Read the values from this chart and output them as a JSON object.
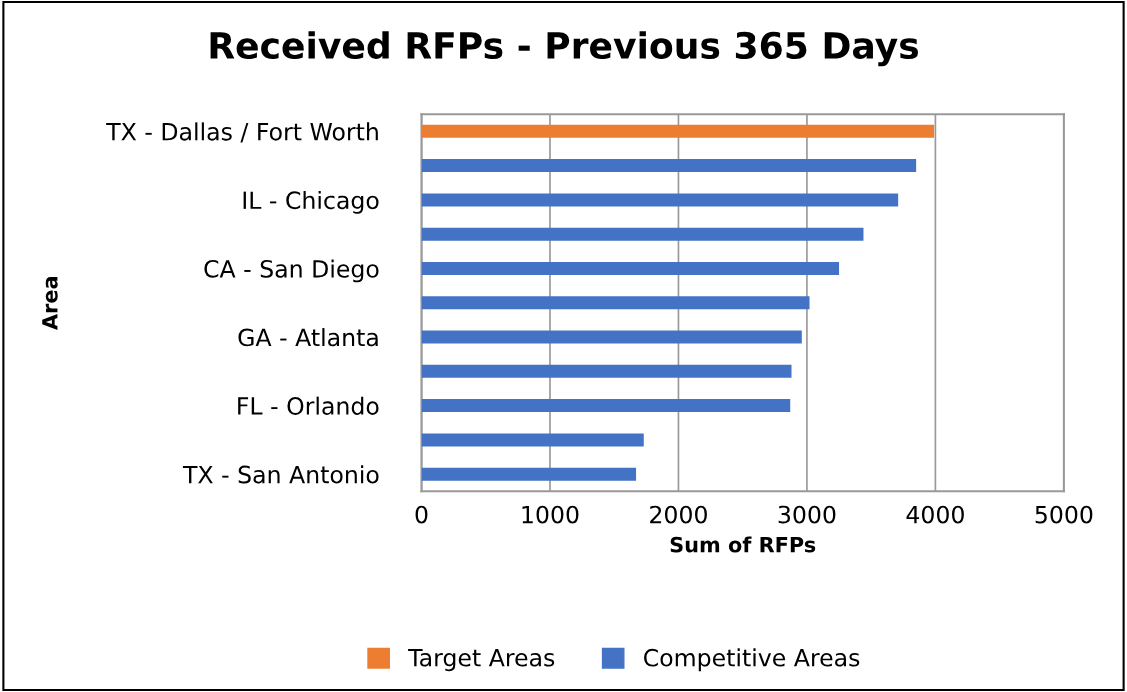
{
  "chart_data": {
    "type": "bar",
    "orientation": "horizontal",
    "title": "Received RFPs - Previous 365 Days",
    "xlabel": "Sum of RFPs",
    "ylabel": "Area",
    "categories": [
      "TX - Dallas / Fort Worth",
      null,
      "IL - Chicago",
      null,
      "CA - San Diego",
      null,
      "GA - Atlanta",
      null,
      "FL - Orlando",
      null,
      "TX - San Antonio"
    ],
    "series": [
      {
        "name": "Target Areas",
        "color": "#ed7d31",
        "values": [
          3990,
          null,
          null,
          null,
          null,
          null,
          null,
          null,
          null,
          null,
          null
        ]
      },
      {
        "name": "Competitive Areas",
        "color": "#4472c4",
        "values": [
          null,
          3850,
          3710,
          3440,
          3250,
          3020,
          2960,
          2880,
          2870,
          1730,
          1670
        ]
      }
    ],
    "xlim": [
      0,
      5000
    ],
    "xticks": [
      0,
      1000,
      2000,
      3000,
      4000,
      5000
    ],
    "grid": "x",
    "legend": "bottom"
  }
}
